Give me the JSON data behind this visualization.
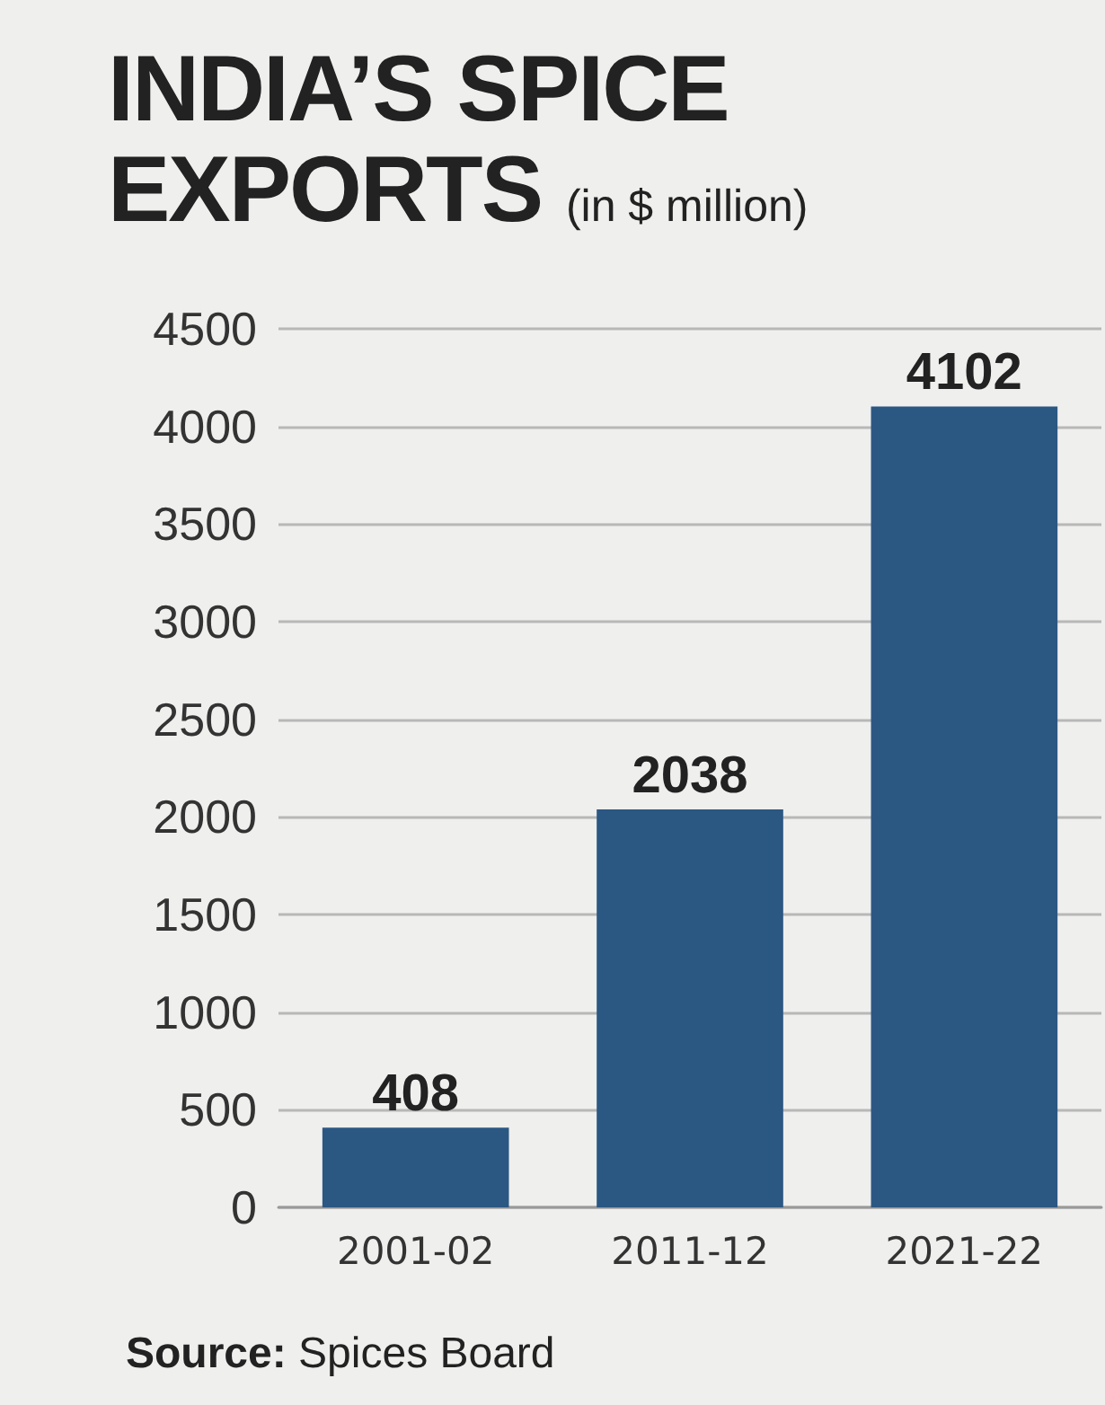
{
  "chart_data": {
    "type": "bar",
    "title": "INDIA’S SPICE EXPORTS",
    "subtitle": "(in $ million)",
    "categories": [
      "2001-02",
      "2011-12",
      "2021-22"
    ],
    "values": [
      408,
      2038,
      4102
    ],
    "color": "#2b5783",
    "data_labels": true,
    "ylim": [
      0,
      4500
    ],
    "yticks": [
      0,
      500,
      1000,
      1500,
      2000,
      2500,
      3000,
      3500,
      4000,
      4500
    ],
    "grid": "y",
    "annotations": [
      "Source: Spices Board"
    ]
  }
}
